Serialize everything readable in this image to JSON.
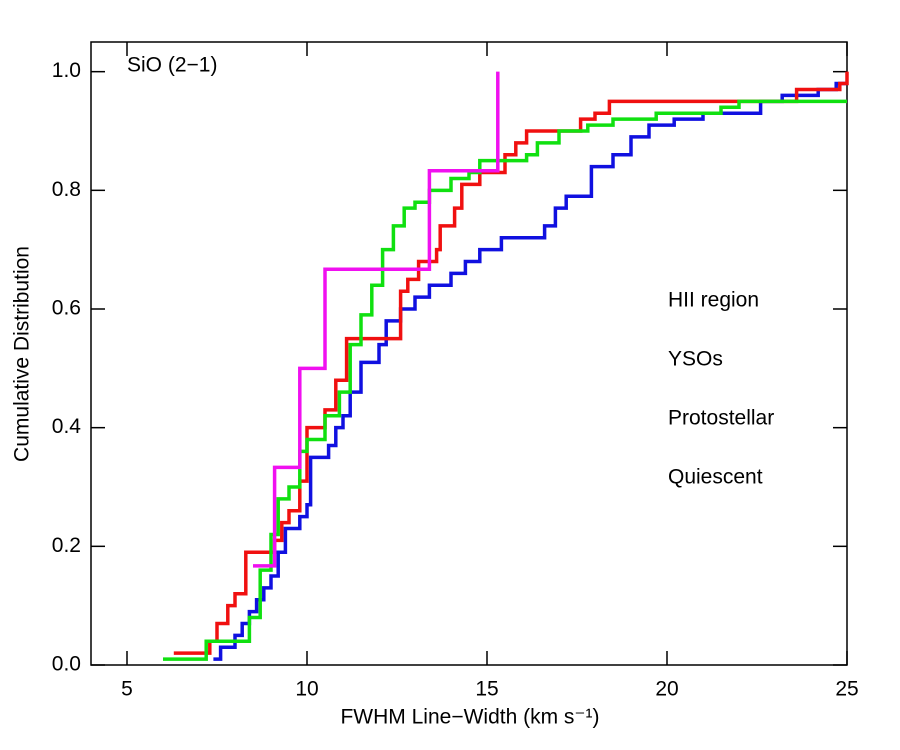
{
  "chart_data": {
    "type": "step",
    "annotation": "SiO (2−1)",
    "annotation_color": "#1010e0",
    "x_label": "FWHM Line−Width (km s⁻¹)",
    "y_label": "Cumulative Distribution",
    "xlim": [
      4,
      25
    ],
    "ylim": [
      0,
      1.05
    ],
    "xticks": [
      5,
      10,
      15,
      20,
      25
    ],
    "yticks": [
      {
        "value": 0,
        "label": "0.0"
      },
      0.2,
      0.4,
      0.6,
      0.8,
      {
        "value": 1,
        "label": "1.0"
      }
    ],
    "series": [
      {
        "name": "HII region",
        "color": "#1010e0",
        "x": [
          7.4,
          7.6,
          8.0,
          8.2,
          8.4,
          8.6,
          8.8,
          9.0,
          9.2,
          9.4,
          9.8,
          10.0,
          10.1,
          10.6,
          10.8,
          11.0,
          11.2,
          11.5,
          12.0,
          12.2,
          12.6,
          13.0,
          13.4,
          14.0,
          14.4,
          14.8,
          15.4,
          16.6,
          16.9,
          17.2,
          17.9,
          18.5,
          19.0,
          19.5,
          20.2,
          21.0,
          22.6,
          23.2,
          24.2,
          24.7,
          25
        ],
        "values": [
          0.01,
          0.03,
          0.05,
          0.07,
          0.09,
          0.11,
          0.13,
          0.15,
          0.19,
          0.23,
          0.25,
          0.27,
          0.35,
          0.37,
          0.4,
          0.42,
          0.46,
          0.51,
          0.54,
          0.58,
          0.6,
          0.62,
          0.64,
          0.66,
          0.68,
          0.7,
          0.72,
          0.74,
          0.77,
          0.79,
          0.84,
          0.86,
          0.89,
          0.91,
          0.92,
          0.93,
          0.95,
          0.96,
          0.97,
          0.98,
          0.98
        ]
      },
      {
        "name": "YSOs",
        "color": "#f01010",
        "x": [
          6.3,
          7.3,
          7.5,
          7.8,
          8.0,
          8.3,
          9.1,
          9.3,
          9.5,
          9.8,
          10.0,
          10.5,
          10.8,
          11.1,
          12.6,
          12.8,
          13.1,
          13.6,
          13.7,
          14.1,
          14.3,
          14.8,
          15.5,
          15.8,
          16.1,
          17.6,
          18.0,
          18.4,
          23.6,
          24.8,
          25
        ],
        "values": [
          0.02,
          0.04,
          0.07,
          0.1,
          0.12,
          0.19,
          0.21,
          0.24,
          0.26,
          0.31,
          0.4,
          0.43,
          0.48,
          0.55,
          0.63,
          0.65,
          0.68,
          0.7,
          0.74,
          0.77,
          0.81,
          0.83,
          0.86,
          0.88,
          0.9,
          0.92,
          0.93,
          0.95,
          0.97,
          0.98,
          1.0
        ]
      },
      {
        "name": "Protostellar",
        "color": "#10e010",
        "x": [
          6.0,
          7.2,
          8.4,
          8.7,
          9.0,
          9.2,
          9.5,
          9.8,
          10.0,
          10.5,
          10.9,
          11.2,
          11.5,
          11.8,
          12.1,
          12.4,
          12.7,
          13.0,
          13.4,
          14.0,
          14.5,
          14.8,
          16.1,
          16.4,
          17.0,
          17.8,
          18.5,
          19.7,
          21.5,
          22.0,
          25
        ],
        "values": [
          0.01,
          0.04,
          0.08,
          0.16,
          0.22,
          0.28,
          0.3,
          0.36,
          0.38,
          0.42,
          0.46,
          0.54,
          0.59,
          0.64,
          0.7,
          0.74,
          0.77,
          0.78,
          0.8,
          0.82,
          0.83,
          0.85,
          0.86,
          0.88,
          0.9,
          0.91,
          0.92,
          0.93,
          0.94,
          0.95,
          0.95
        ]
      },
      {
        "name": "Quiescent",
        "color": "#f010f0",
        "x": [
          8.5,
          9.1,
          9.8,
          10.5,
          13.4,
          15.3
        ],
        "values": [
          0.167,
          0.333,
          0.5,
          0.667,
          0.833,
          1.0
        ]
      }
    ]
  }
}
